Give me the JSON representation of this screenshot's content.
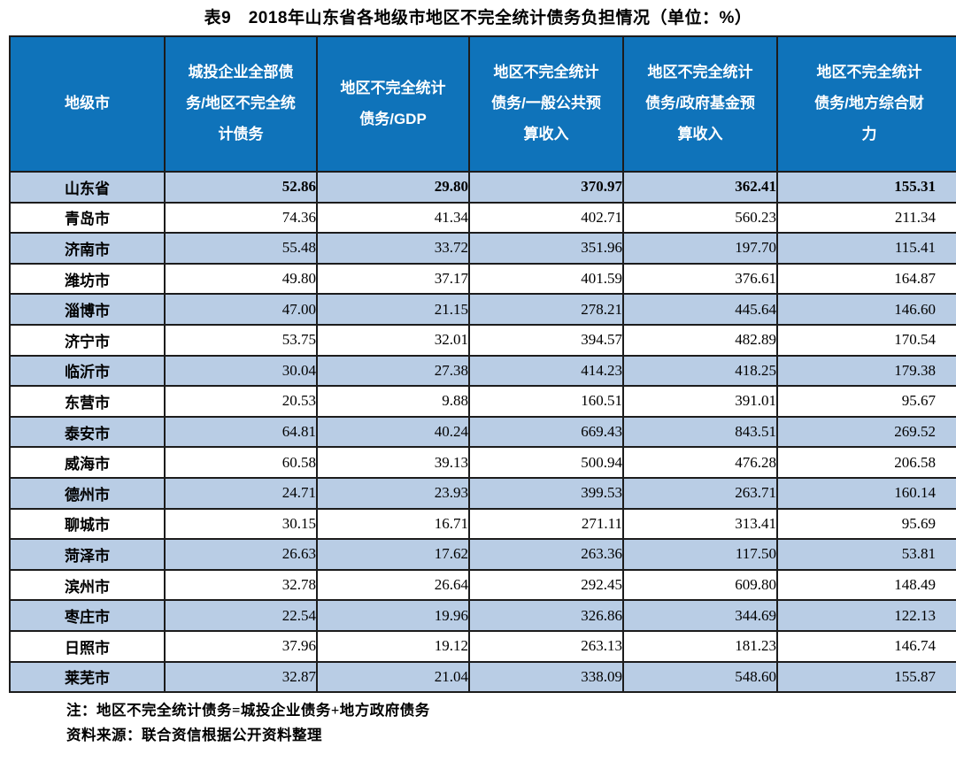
{
  "title": "表9　2018年山东省各地级市地区不完全统计债务负担情况（单位：%）",
  "colors": {
    "header_bg": "#0f73ba",
    "band_bg": "#b9cde5",
    "border": "#1c1c1c",
    "header_text": "#ffffff"
  },
  "table": {
    "columns": [
      "地级市",
      "城投企业全部债务/地区不完全统计债务",
      "地区不完全统计债务/GDP",
      "地区不完全统计债务/一般公共预算收入",
      "地区不完全统计债务/政府基金预算收入",
      "地区不完全统计债务/地方综合财力"
    ],
    "rows": [
      {
        "city": "山东省",
        "values": [
          "52.86",
          "29.80",
          "370.97",
          "362.41",
          "155.31"
        ],
        "bold": true
      },
      {
        "city": "青岛市",
        "values": [
          "74.36",
          "41.34",
          "402.71",
          "560.23",
          "211.34"
        ],
        "bold": false
      },
      {
        "city": "济南市",
        "values": [
          "55.48",
          "33.72",
          "351.96",
          "197.70",
          "115.41"
        ],
        "bold": false
      },
      {
        "city": "潍坊市",
        "values": [
          "49.80",
          "37.17",
          "401.59",
          "376.61",
          "164.87"
        ],
        "bold": false
      },
      {
        "city": "淄博市",
        "values": [
          "47.00",
          "21.15",
          "278.21",
          "445.64",
          "146.60"
        ],
        "bold": false
      },
      {
        "city": "济宁市",
        "values": [
          "53.75",
          "32.01",
          "394.57",
          "482.89",
          "170.54"
        ],
        "bold": false
      },
      {
        "city": "临沂市",
        "values": [
          "30.04",
          "27.38",
          "414.23",
          "418.25",
          "179.38"
        ],
        "bold": false
      },
      {
        "city": "东营市",
        "values": [
          "20.53",
          "9.88",
          "160.51",
          "391.01",
          "95.67"
        ],
        "bold": false
      },
      {
        "city": "泰安市",
        "values": [
          "64.81",
          "40.24",
          "669.43",
          "843.51",
          "269.52"
        ],
        "bold": false
      },
      {
        "city": "威海市",
        "values": [
          "60.58",
          "39.13",
          "500.94",
          "476.28",
          "206.58"
        ],
        "bold": false
      },
      {
        "city": "德州市",
        "values": [
          "24.71",
          "23.93",
          "399.53",
          "263.71",
          "160.14"
        ],
        "bold": false
      },
      {
        "city": "聊城市",
        "values": [
          "30.15",
          "16.71",
          "271.11",
          "313.41",
          "95.69"
        ],
        "bold": false
      },
      {
        "city": "菏泽市",
        "values": [
          "26.63",
          "17.62",
          "263.36",
          "117.50",
          "53.81"
        ],
        "bold": false
      },
      {
        "city": "滨州市",
        "values": [
          "32.78",
          "26.64",
          "292.45",
          "609.80",
          "148.49"
        ],
        "bold": false
      },
      {
        "city": "枣庄市",
        "values": [
          "22.54",
          "19.96",
          "326.86",
          "344.69",
          "122.13"
        ],
        "bold": false
      },
      {
        "city": "日照市",
        "values": [
          "37.96",
          "19.12",
          "263.13",
          "181.23",
          "146.74"
        ],
        "bold": false
      },
      {
        "city": "莱芜市",
        "values": [
          "32.87",
          "21.04",
          "338.09",
          "548.60",
          "155.87"
        ],
        "bold": false
      }
    ]
  },
  "notes": {
    "line1": "注：地区不完全统计债务=城投企业债务+地方政府债务",
    "line2": "资料来源：联合资信根据公开资料整理"
  }
}
